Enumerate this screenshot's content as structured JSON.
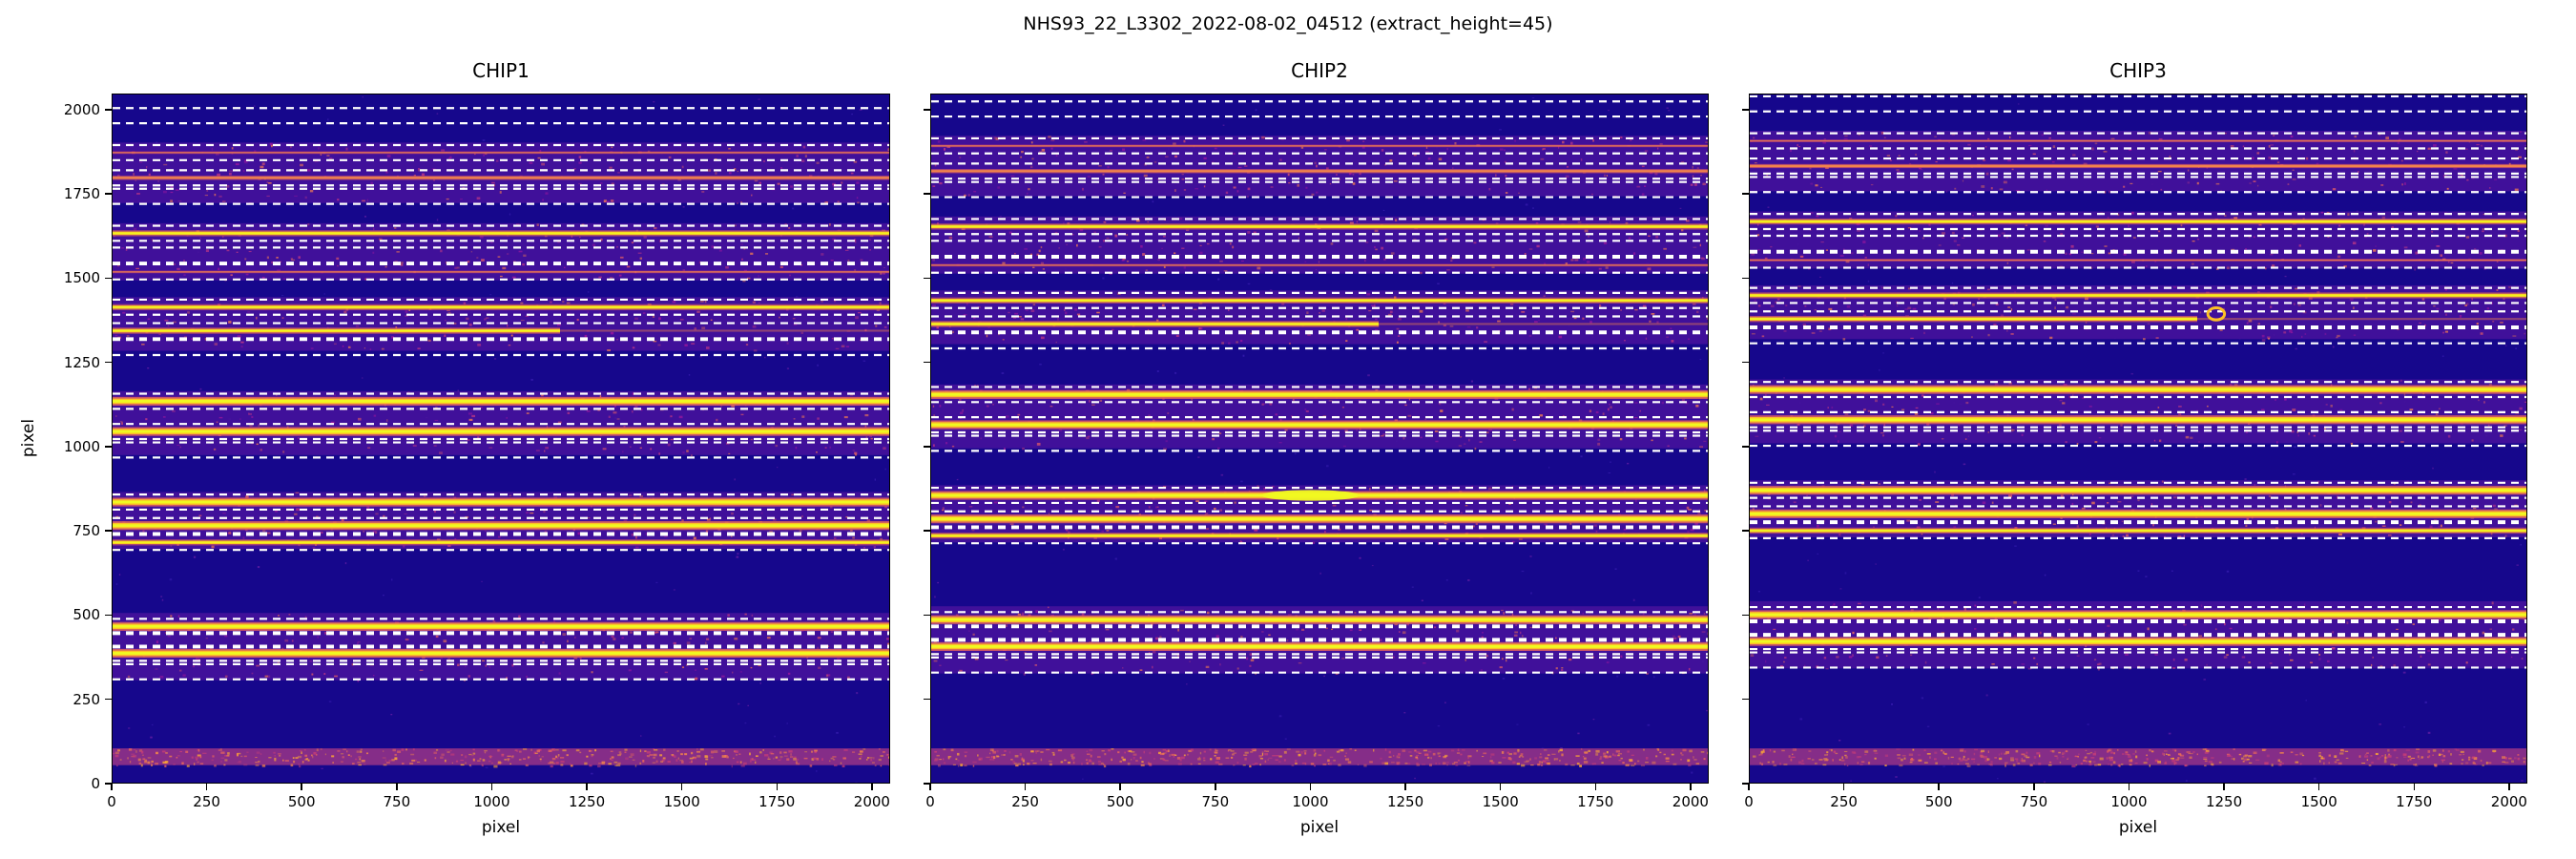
{
  "chart_data": {
    "type": "heatmap",
    "title": "NHS93_22_L3302_2022-08-02_04512  (extract_height=45)",
    "extract_height": 45,
    "extraction_half_height": 22.5,
    "xlabel": "pixel",
    "ylabel": "pixel",
    "x_range": [
      0,
      2048
    ],
    "y_range": [
      0,
      2048
    ],
    "x_ticks": [
      0,
      250,
      500,
      750,
      1000,
      1250,
      1500,
      1750,
      2000
    ],
    "y_ticks": [
      0,
      250,
      500,
      750,
      1000,
      1250,
      1500,
      1750,
      2000
    ],
    "colormap": "plasma",
    "legend": "none",
    "grid": false,
    "colors": {
      "background": "#16078c",
      "band": "#45129b",
      "speckle": [
        "#9c179e",
        "#bd3786",
        "#d8576b",
        "#ed7953"
      ],
      "trace_core": "#f0f921",
      "trace_mid": "#fdc125",
      "trace_halo": "#e4645d",
      "orange": "#f1844b",
      "dashed": "#ffffff",
      "bottom_band": "#8b2f88",
      "bottom_speckle": [
        "#c73e77",
        "#e4645d",
        "#f1844b",
        "#fca636"
      ]
    },
    "panels": [
      {
        "name": "CHIP1",
        "y_offset": 0
      },
      {
        "name": "CHIP2",
        "y_offset": 20,
        "hotspot": {
          "x": 1000,
          "y": 835
        }
      },
      {
        "name": "CHIP3",
        "y_offset": 35,
        "artifact": {
          "x": 1230,
          "y": 1360
        }
      }
    ],
    "orders": [
      {
        "y": 1985,
        "trace": "none"
      },
      {
        "y": 1875,
        "trace": "faint-orange"
      },
      {
        "y": 1800,
        "trace": "orange"
      },
      {
        "y": 1745,
        "trace": "none"
      },
      {
        "y": 1635,
        "trace": "medium"
      },
      {
        "y": 1570,
        "trace": "none"
      },
      {
        "y": 1520,
        "trace": "faint-orange"
      },
      {
        "y": 1415,
        "trace": "medium"
      },
      {
        "y": 1345,
        "trace": "partial"
      },
      {
        "y": 1295,
        "trace": "none"
      },
      {
        "y": 1135,
        "trace": "bright"
      },
      {
        "y": 1045,
        "trace": "bright"
      },
      {
        "y": 990,
        "trace": "none"
      },
      {
        "y": 835,
        "trace": "bright"
      },
      {
        "y": 765,
        "trace": "bright"
      },
      {
        "y": 715,
        "trace": "medium"
      },
      {
        "y": 465,
        "trace": "bright"
      },
      {
        "y": 425,
        "trace": "none"
      },
      {
        "y": 385,
        "trace": "bright"
      },
      {
        "y": 330,
        "trace": "none"
      }
    ],
    "purple_bands": [
      [
        305,
        505
      ],
      [
        695,
        865
      ],
      [
        975,
        1165
      ],
      [
        1285,
        1445
      ],
      [
        1495,
        1665
      ],
      [
        1725,
        1905
      ]
    ],
    "bottom_band": [
      52,
      102
    ]
  }
}
